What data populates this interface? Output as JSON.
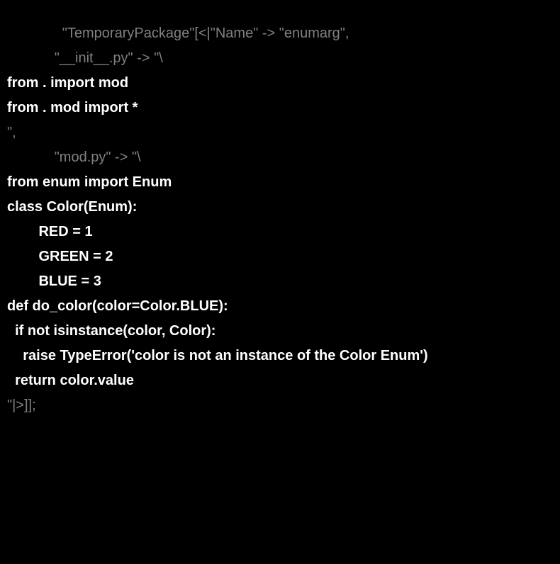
{
  "code": {
    "line1_indent": "              ",
    "line1_str1": "\"TemporaryPackage\"",
    "line1_bracket": "[",
    "line1_assoc": "<|",
    "line1_str2": "\"Name\"",
    "line1_arrow": " -> ",
    "line1_str3": "\"enumarg\"",
    "line1_comma": ",",
    "line2_indent": "            ",
    "line2_str": "\"__init__.py\"",
    "line2_arrow": " -> ",
    "line2_str2": "\"\\",
    "line3": "from . import mod",
    "line4": "from . mod import *",
    "line5_close": "\",",
    "line6_indent": "            ",
    "line6_str": "\"mod.py\"",
    "line6_arrow": " -> ",
    "line6_str2": "\"\\",
    "line7": "from enum import Enum",
    "line8": "class Color(Enum):",
    "line9": "        RED = 1",
    "line10": "        GREEN = 2",
    "line11": "        BLUE = 3",
    "line12": "",
    "line13": "def do_color(color=Color.BLUE):",
    "line14": "  if not isinstance(color, Color):",
    "line15": "    raise TypeError('color is not an instance of the Color Enum')",
    "line16": "  return color.value",
    "line17_close": "\"|>]];"
  }
}
